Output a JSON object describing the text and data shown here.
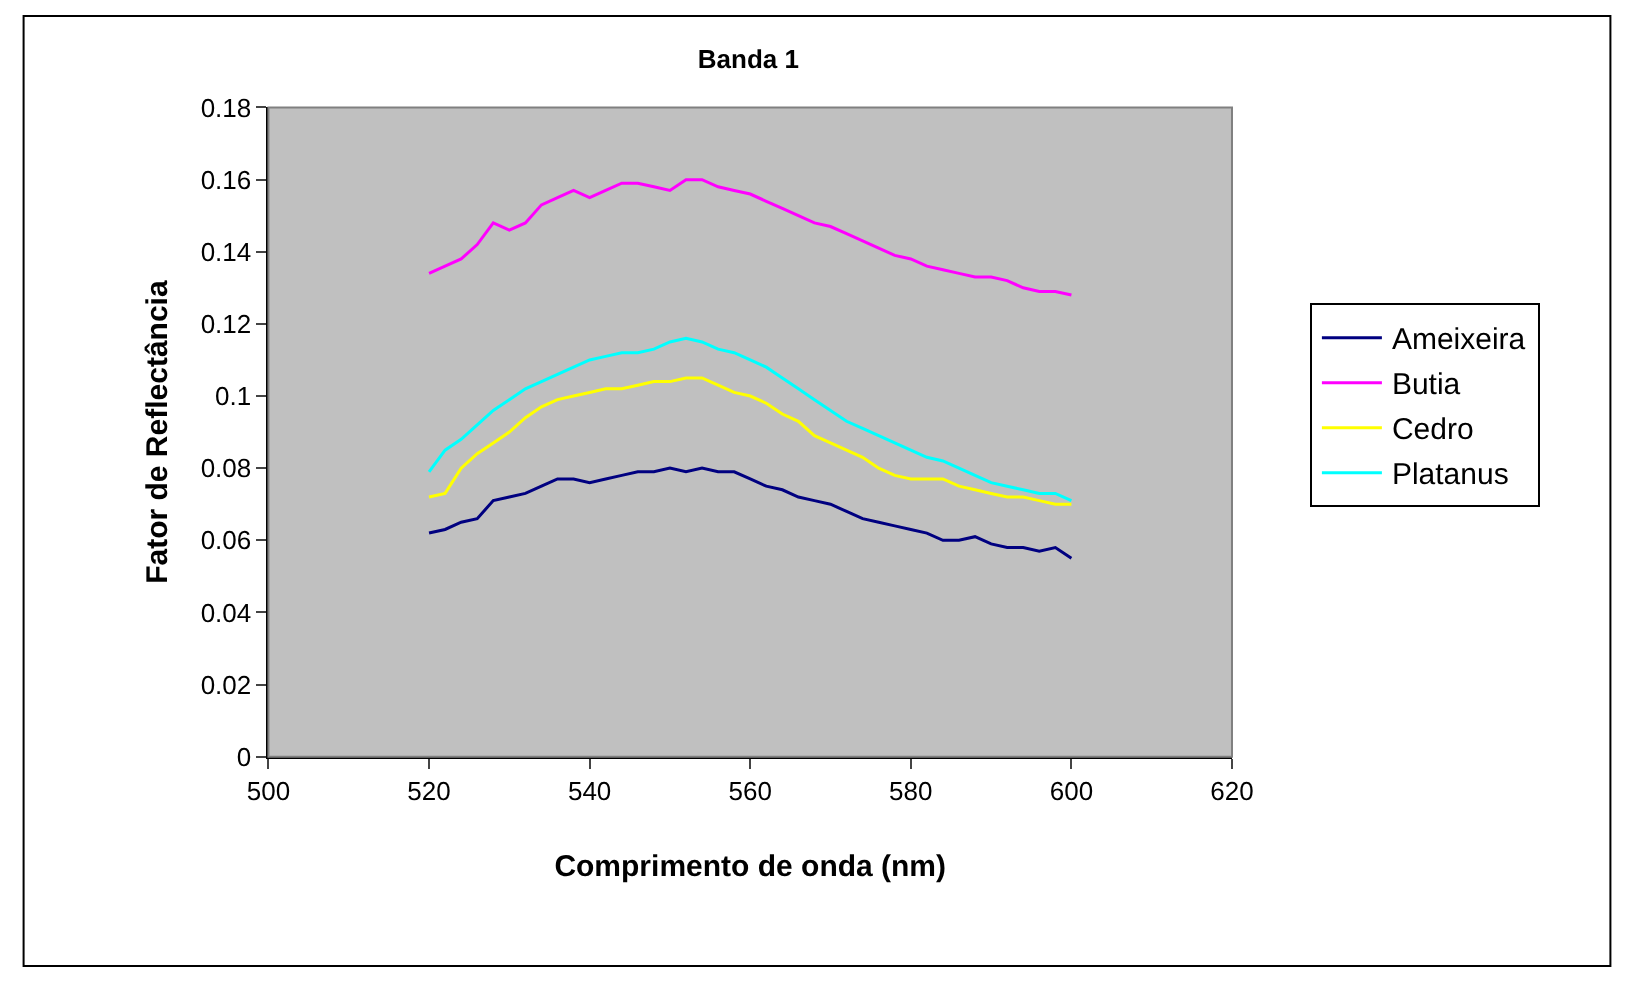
{
  "chart_data": {
    "type": "line",
    "title": "Banda 1",
    "xlabel": "Comprimento de onda (nm)",
    "ylabel": "Fator de Reflectância",
    "x": [
      520,
      522,
      524,
      526,
      528,
      530,
      532,
      534,
      536,
      538,
      540,
      542,
      544,
      546,
      548,
      550,
      552,
      554,
      556,
      558,
      560,
      562,
      564,
      566,
      568,
      570,
      572,
      574,
      576,
      578,
      580,
      582,
      584,
      586,
      588,
      590,
      592,
      594,
      596,
      598,
      600
    ],
    "series": [
      {
        "name": "Ameixeira",
        "color": "#000080",
        "values": [
          0.062,
          0.063,
          0.065,
          0.066,
          0.071,
          0.072,
          0.073,
          0.075,
          0.077,
          0.077,
          0.076,
          0.077,
          0.078,
          0.079,
          0.079,
          0.08,
          0.079,
          0.08,
          0.079,
          0.079,
          0.077,
          0.075,
          0.074,
          0.072,
          0.071,
          0.07,
          0.068,
          0.066,
          0.065,
          0.064,
          0.063,
          0.062,
          0.06,
          0.06,
          0.061,
          0.059,
          0.058,
          0.058,
          0.057,
          0.058,
          0.055
        ]
      },
      {
        "name": "Butia",
        "color": "#ff00ff",
        "values": [
          0.134,
          0.136,
          0.138,
          0.142,
          0.148,
          0.146,
          0.148,
          0.153,
          0.155,
          0.157,
          0.155,
          0.157,
          0.159,
          0.159,
          0.158,
          0.157,
          0.16,
          0.16,
          0.158,
          0.157,
          0.156,
          0.154,
          0.152,
          0.15,
          0.148,
          0.147,
          0.145,
          0.143,
          0.141,
          0.139,
          0.138,
          0.136,
          0.135,
          0.134,
          0.133,
          0.133,
          0.132,
          0.13,
          0.129,
          0.129,
          0.128
        ]
      },
      {
        "name": "Cedro",
        "color": "#ffff00",
        "values": [
          0.072,
          0.073,
          0.08,
          0.084,
          0.087,
          0.09,
          0.094,
          0.097,
          0.099,
          0.1,
          0.101,
          0.102,
          0.102,
          0.103,
          0.104,
          0.104,
          0.105,
          0.105,
          0.103,
          0.101,
          0.1,
          0.098,
          0.095,
          0.093,
          0.089,
          0.087,
          0.085,
          0.083,
          0.08,
          0.078,
          0.077,
          0.077,
          0.077,
          0.075,
          0.074,
          0.073,
          0.072,
          0.072,
          0.071,
          0.07,
          0.07
        ]
      },
      {
        "name": "Platanus",
        "color": "#00ffff",
        "values": [
          0.079,
          0.085,
          0.088,
          0.092,
          0.096,
          0.099,
          0.102,
          0.104,
          0.106,
          0.108,
          0.11,
          0.111,
          0.112,
          0.112,
          0.113,
          0.115,
          0.116,
          0.115,
          0.113,
          0.112,
          0.11,
          0.108,
          0.105,
          0.102,
          0.099,
          0.096,
          0.093,
          0.091,
          0.089,
          0.087,
          0.085,
          0.083,
          0.082,
          0.08,
          0.078,
          0.076,
          0.075,
          0.074,
          0.073,
          0.073,
          0.071
        ]
      }
    ],
    "xlim": [
      500,
      620
    ],
    "xticks": [
      500,
      520,
      540,
      560,
      580,
      600,
      620
    ],
    "ylim": [
      0,
      0.18
    ],
    "yticks": [
      0,
      0.02,
      0.04,
      0.06,
      0.08,
      0.1,
      0.12,
      0.14,
      0.16,
      0.18
    ],
    "grid": false,
    "legend": "right",
    "marker": "none",
    "line_style": "solid"
  }
}
